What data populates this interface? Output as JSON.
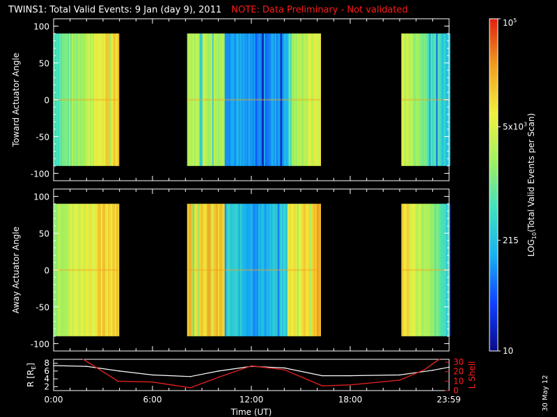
{
  "title": {
    "main": "TWINS1: Total Valid Events:  9 Jan (day   9), 2011",
    "note": "NOTE: Data Preliminary - Not validated"
  },
  "date_stamp": "30 May 12",
  "colors": {
    "background": "#000000",
    "note_red": "#ff1a1a",
    "r_line": "#ffffff",
    "l_shell_line": "#e02020",
    "colormap": [
      "#0a0a8a",
      "#1040ff",
      "#18b0f0",
      "#40e0c0",
      "#a0f060",
      "#f0f040",
      "#f0a020",
      "#e02010"
    ]
  },
  "chart_data": [
    {
      "type": "heatmap",
      "panel": "top",
      "ylabel": "Toward Actuator Angle",
      "ylim": [
        -110,
        110
      ],
      "yticks": [
        100,
        50,
        0,
        -50,
        -100
      ],
      "angle_range": [
        -90,
        90
      ],
      "x_hours_range": [
        0,
        24
      ],
      "data_intervals": [
        {
          "start_h": 0.0,
          "end_h": 3.9,
          "profile": "green-yellow"
        },
        {
          "start_h": 8.1,
          "end_h": 16.2,
          "profile": "yellow-blue-yellow"
        },
        {
          "start_h": 21.1,
          "end_h": 24.0,
          "profile": "yellow-cyan"
        }
      ]
    },
    {
      "type": "heatmap",
      "panel": "middle",
      "ylabel": "Away Actuator Angle",
      "ylim": [
        -110,
        110
      ],
      "yticks": [
        100,
        50,
        0,
        -50,
        -100
      ],
      "angle_range": [
        -90,
        90
      ],
      "x_hours_range": [
        0,
        24
      ],
      "data_intervals": [
        {
          "start_h": 0.0,
          "end_h": 3.9,
          "profile": "yellow-orange"
        },
        {
          "start_h": 8.1,
          "end_h": 16.2,
          "profile": "orange-blue-orange"
        },
        {
          "start_h": 21.1,
          "end_h": 24.0,
          "profile": "orange-cyan"
        }
      ]
    },
    {
      "type": "line",
      "panel": "bottom",
      "xlabel": "Time (UT)",
      "xticks": [
        "0:00",
        "6:00",
        "12:00",
        "18:00",
        "23:59"
      ],
      "xtick_hours": [
        0,
        6,
        12,
        18,
        23.98
      ],
      "left_axis": {
        "label": "R [R",
        "label_sub": "E",
        "label_end": "]",
        "ticks": [
          2,
          4,
          6,
          8
        ],
        "ylim": [
          1,
          9
        ]
      },
      "right_axis": {
        "label": "L Shell",
        "ticks": [
          0,
          10,
          20,
          30
        ],
        "ylim": [
          0,
          33
        ]
      },
      "series": [
        {
          "axis": "left",
          "x": [
            0,
            2,
            4,
            6,
            8.3,
            10,
            12,
            14,
            16.3,
            18,
            21,
            23,
            24
          ],
          "y": [
            7.4,
            7.2,
            6.0,
            5.0,
            4.6,
            6.0,
            7.2,
            6.8,
            4.8,
            4.8,
            5.0,
            6.2,
            7.0
          ]
        },
        {
          "axis": "right",
          "x": [
            1.8,
            3.9,
            6,
            8.3,
            10,
            12,
            14,
            16.3,
            18,
            21,
            22.5,
            23.4
          ],
          "y": [
            33,
            10,
            9,
            3,
            14,
            26,
            22,
            5,
            6,
            11,
            22,
            33
          ]
        }
      ]
    },
    {
      "type": "colorbar",
      "ylabel": "LOG",
      "ylabel_sub": "10",
      "ylabel_end": "(Total Valid Events per Scan)",
      "ticks": [
        {
          "label": "10",
          "sup": "",
          "value": 10
        },
        {
          "label": "215",
          "sup": "",
          "value": 215
        },
        {
          "label": "5x10",
          "sup": "3",
          "value": 5000
        },
        {
          "label": "10",
          "sup": "5",
          "value": 100000
        }
      ],
      "range": [
        10,
        100000
      ]
    }
  ]
}
